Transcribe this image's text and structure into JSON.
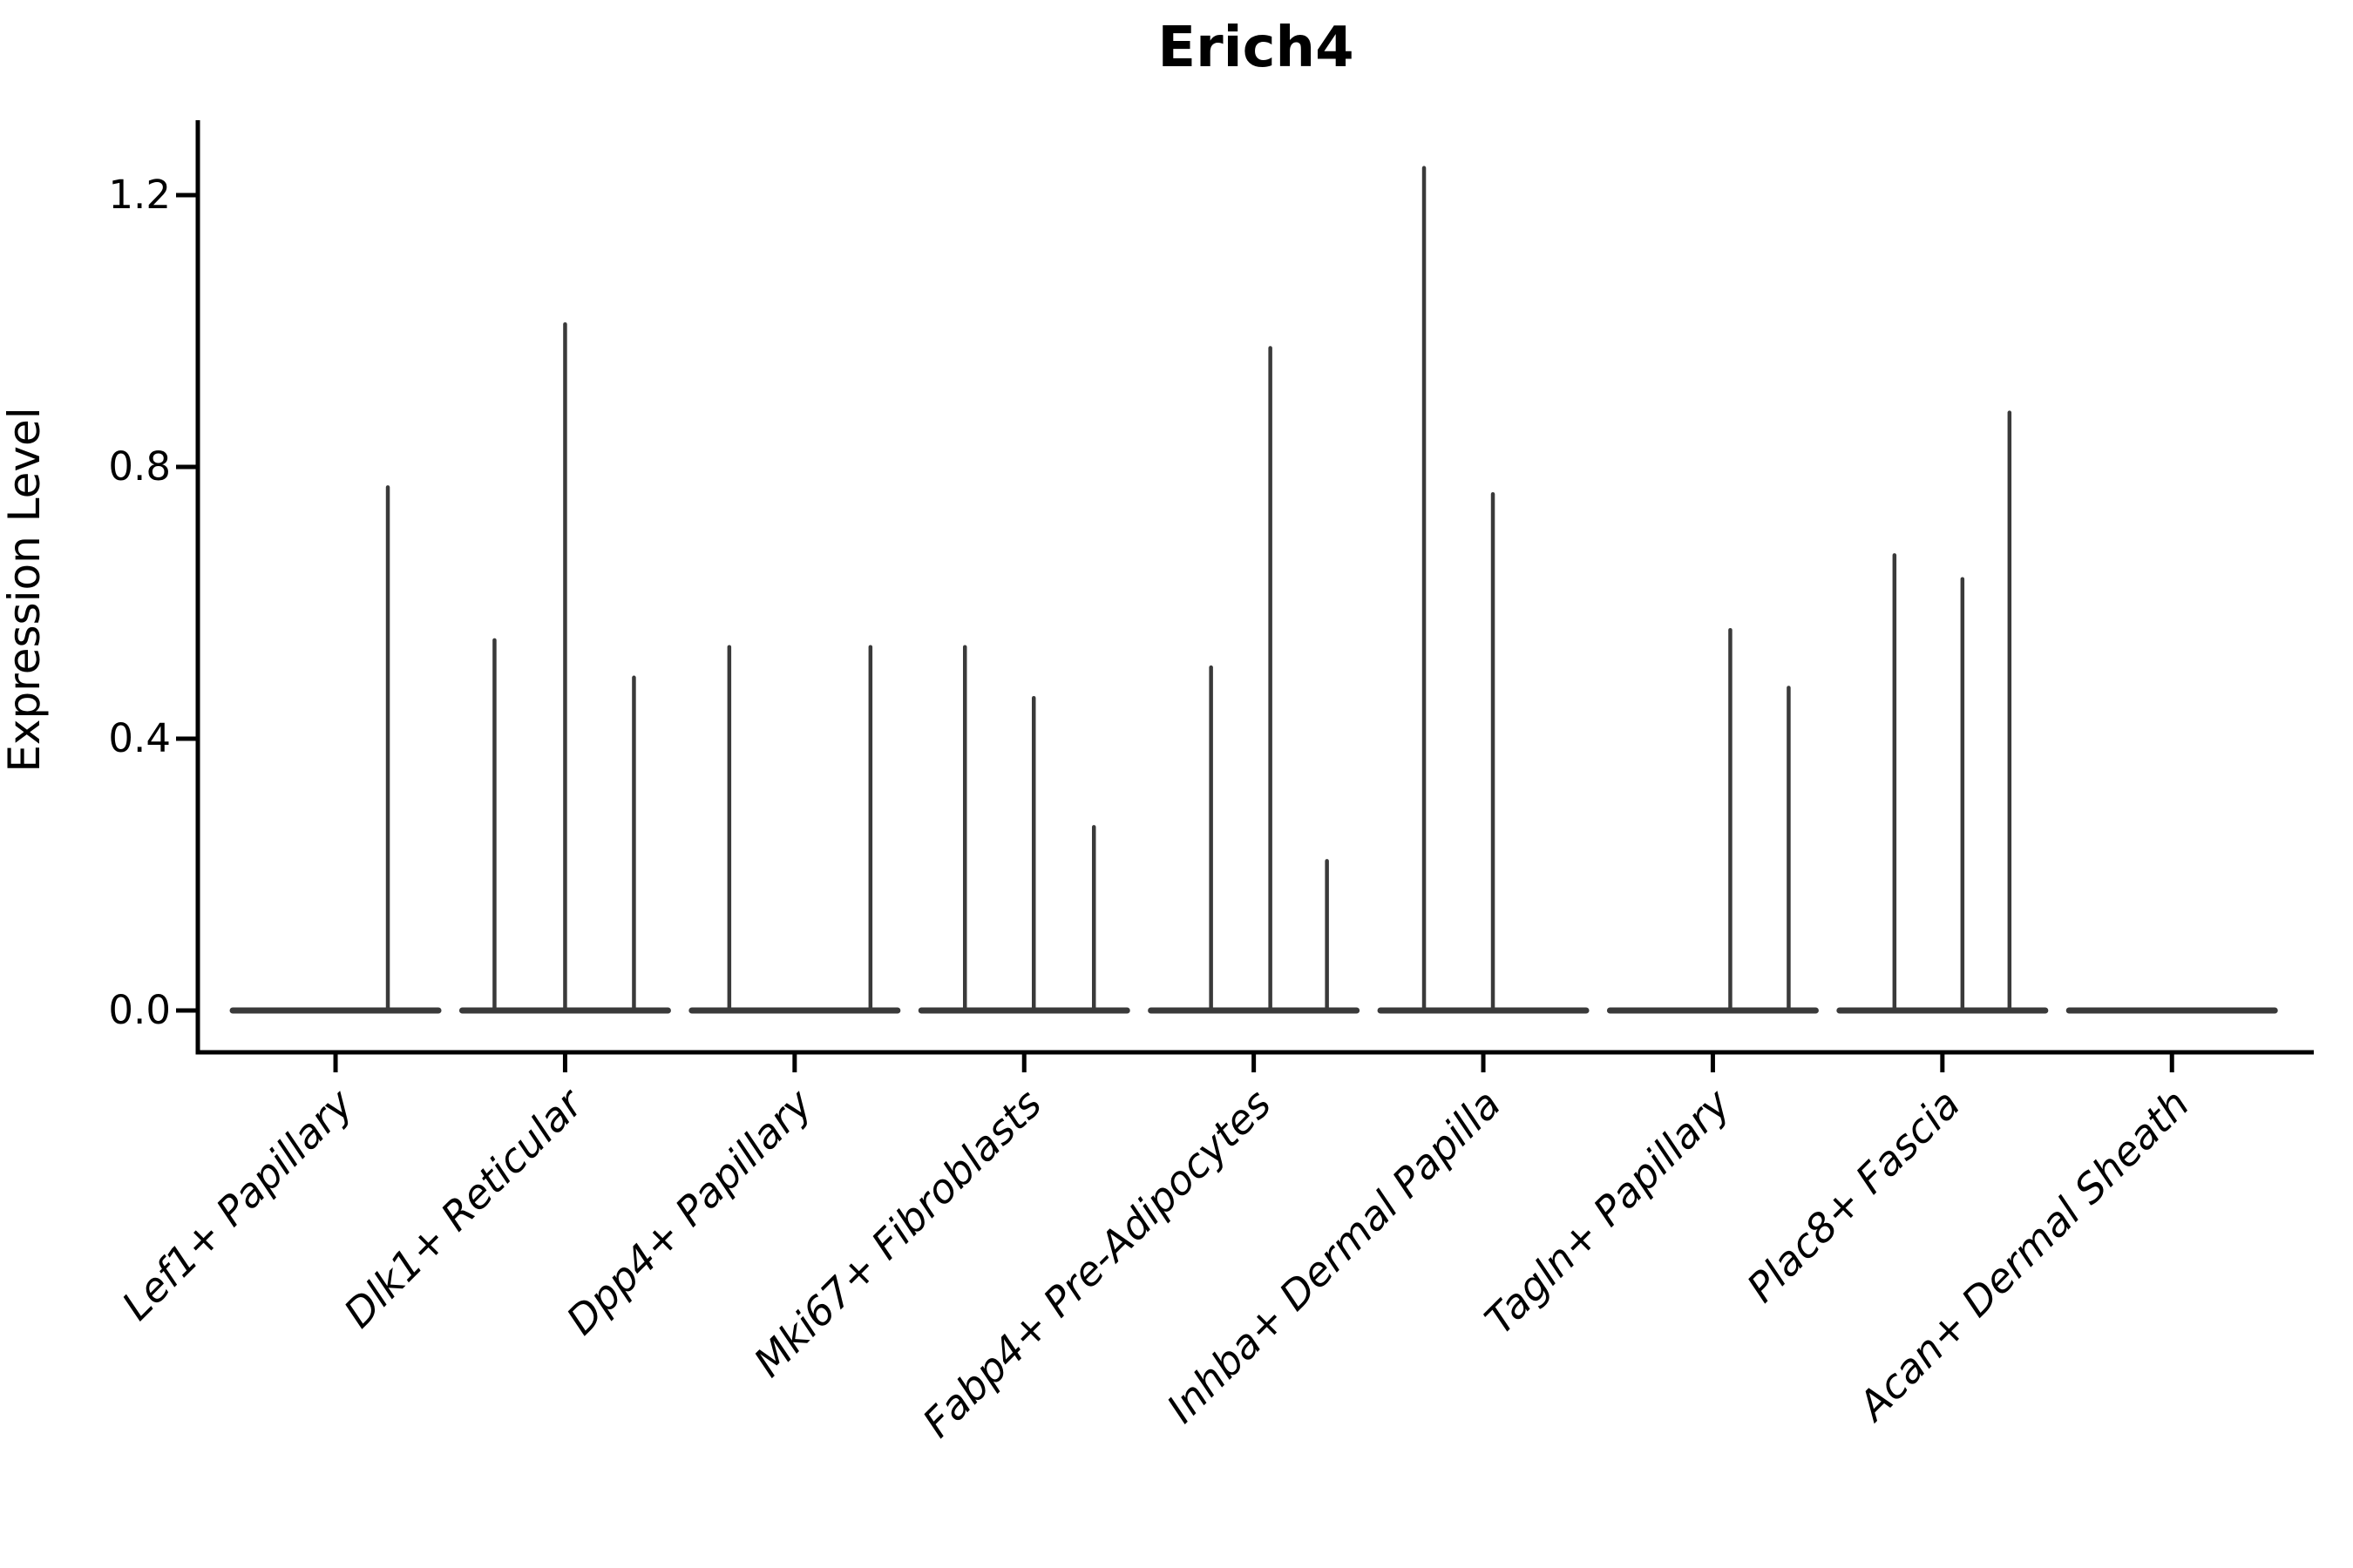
{
  "chart_data": {
    "type": "violin",
    "title": "Erich4",
    "xlabel": "",
    "ylabel": "Expression Level",
    "yticks": [
      0.0,
      0.4,
      0.8,
      1.2
    ],
    "ytick_labels": [
      "0.0",
      "0.4",
      "0.8",
      "1.2"
    ],
    "ylim": [
      -0.06,
      1.31
    ],
    "grid": "off",
    "legend": "none",
    "categories": [
      "Lef1+ Papillary",
      "Dlk1+ Reticular",
      "Dpp4+ Papillary",
      "Mki67+ Fibroblasts",
      "Fabp4+ Pre-Adipocytes",
      "Inhba+ Dermal Papilla",
      "Tagln+ Papillary",
      "Plac8+ Fascia",
      "Acan+ Dermal Sheath"
    ],
    "groups": [
      {
        "label": "Lef1+ Papillary",
        "baseline_value": 0.0,
        "spikes": [
          {
            "dx": 60,
            "value": 0.77
          }
        ]
      },
      {
        "label": "Dlk1+ Reticular",
        "baseline_value": 0.0,
        "spikes": [
          {
            "dx": -81,
            "value": 0.545
          },
          {
            "dx": 0,
            "value": 1.01
          },
          {
            "dx": 79,
            "value": 0.49
          }
        ]
      },
      {
        "label": "Dpp4+ Papillary",
        "baseline_value": 0.0,
        "spikes": [
          {
            "dx": -75,
            "value": 0.535
          },
          {
            "dx": 87,
            "value": 0.535
          }
        ]
      },
      {
        "label": "Mki67+ Fibroblasts",
        "baseline_value": 0.0,
        "spikes": [
          {
            "dx": -68,
            "value": 0.535
          },
          {
            "dx": 11,
            "value": 0.46
          },
          {
            "dx": 80,
            "value": 0.27
          }
        ]
      },
      {
        "label": "Fabp4+ Pre-Adipocytes",
        "baseline_value": 0.0,
        "spikes": [
          {
            "dx": -49,
            "value": 0.505
          },
          {
            "dx": 19,
            "value": 0.975
          },
          {
            "dx": 84,
            "value": 0.22
          }
        ]
      },
      {
        "label": "Inhba+ Dermal Papilla",
        "baseline_value": 0.0,
        "spikes": [
          {
            "dx": -68,
            "value": 1.24
          },
          {
            "dx": 11,
            "value": 0.76
          }
        ]
      },
      {
        "label": "Tagln+ Papillary",
        "baseline_value": 0.0,
        "spikes": [
          {
            "dx": 20,
            "value": 0.56
          },
          {
            "dx": 87,
            "value": 0.475
          }
        ]
      },
      {
        "label": "Plac8+ Fascia",
        "baseline_value": 0.0,
        "spikes": [
          {
            "dx": -55,
            "value": 0.67
          },
          {
            "dx": 23,
            "value": 0.635
          },
          {
            "dx": 77,
            "value": 0.88
          }
        ]
      },
      {
        "label": "Acan+ Dermal Sheath",
        "baseline_value": 0.0,
        "spikes": []
      }
    ],
    "style": {
      "background": "#ffffff",
      "axis_color": "#000000",
      "text_color": "#000000",
      "violin_color": "#3a3a3a"
    }
  }
}
